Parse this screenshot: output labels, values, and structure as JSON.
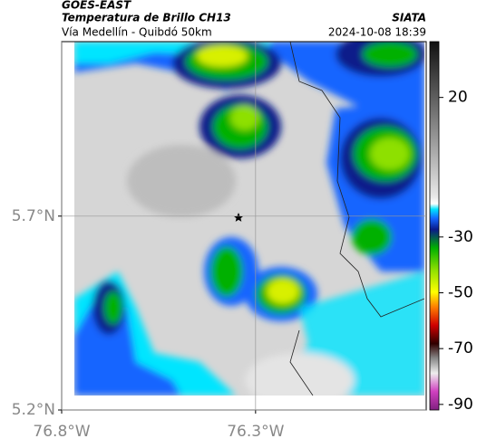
{
  "header": {
    "title": "GOES-EAST",
    "subtitle": "Temperatura de Brillo CH13",
    "location": "Vía Medellín - Quibdó 50km",
    "source": "SIATA",
    "datetime": "2024-10-08 18:39"
  },
  "map": {
    "xlim": [
      -76.8,
      -75.86
    ],
    "ylim": [
      5.2,
      6.15
    ],
    "xticks": [
      {
        "value": -76.8,
        "label": "76.8°W"
      },
      {
        "value": -76.3,
        "label": "76.3°W"
      }
    ],
    "yticks": [
      {
        "value": 5.7,
        "label": "5.7°N"
      },
      {
        "value": 5.2,
        "label": "5.2°N"
      }
    ]
  },
  "colorbar": {
    "lim": [
      -92,
      40
    ],
    "ticks": [
      20,
      -30,
      -50,
      -70,
      -90
    ]
  }
}
